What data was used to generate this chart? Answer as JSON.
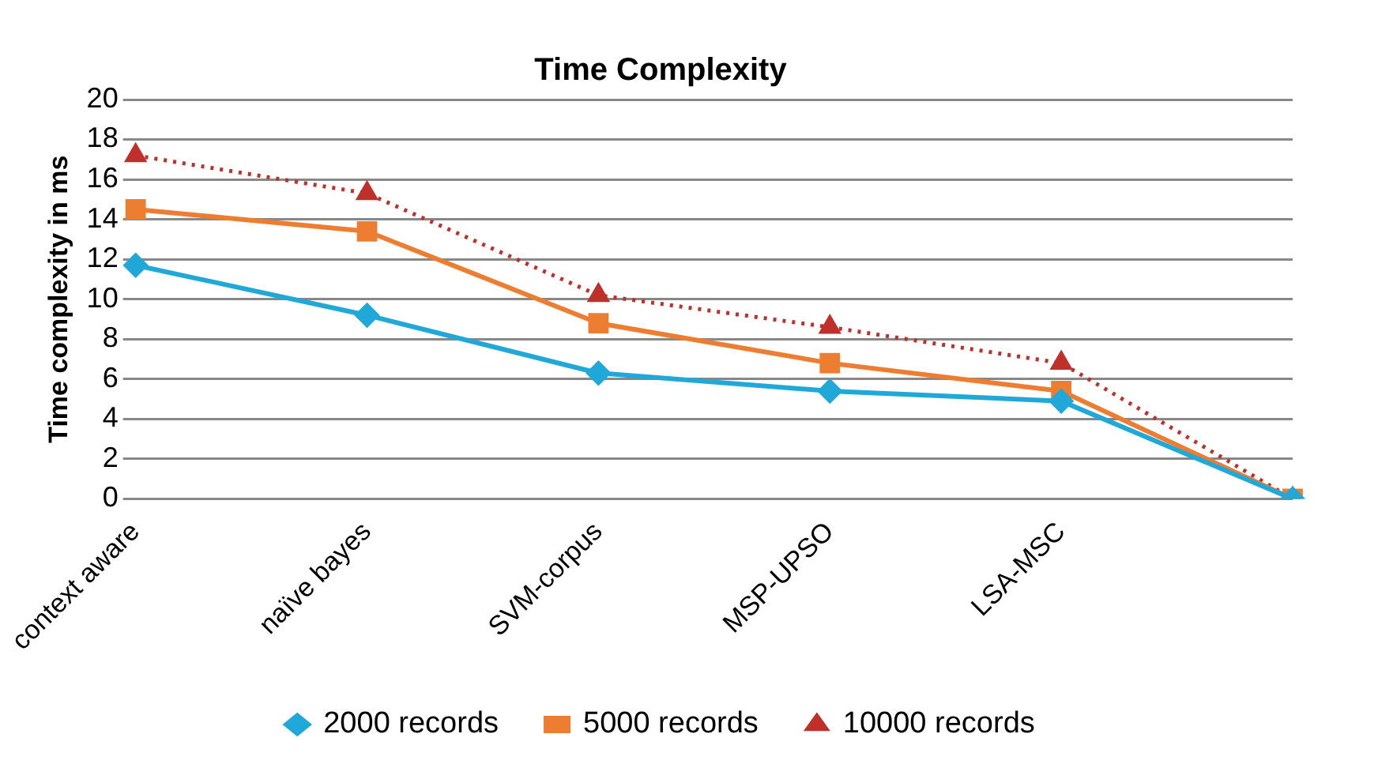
{
  "chart_data": {
    "type": "line",
    "title": "Time Complexity",
    "ylabel": "Time complexity in ms",
    "categories": [
      "context aware",
      "naïve bayes",
      "SVM-corpus",
      "MSP-UPSO",
      "LSA-MSC",
      null
    ],
    "series": [
      {
        "name": "2000 records",
        "color": "#1fa8d8",
        "values": [
          11.7,
          9.2,
          6.3,
          5.4,
          4.9,
          0
        ],
        "marker": "diamond",
        "line_style": "solid"
      },
      {
        "name": "5000 records",
        "color": "#ed7d31",
        "values": [
          14.5,
          13.4,
          8.8,
          6.8,
          5.4,
          0
        ],
        "marker": "square",
        "line_style": "solid"
      },
      {
        "name": "10000 records",
        "color": "#c0302a",
        "values": [
          17.2,
          15.3,
          10.2,
          8.6,
          6.8,
          0
        ],
        "marker": "triangle",
        "line_style": "dotted"
      }
    ],
    "ylim": [
      0,
      20
    ],
    "yticks": [
      0,
      2,
      4,
      6,
      8,
      10,
      12,
      14,
      16,
      18,
      20
    ],
    "grid": "y",
    "legend": "bottom"
  }
}
